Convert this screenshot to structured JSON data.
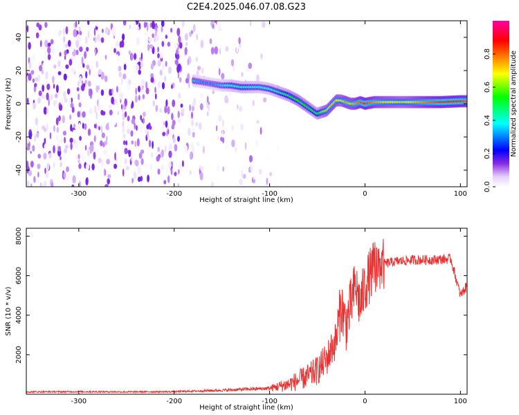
{
  "title": "C2E4.2025.046.07.08.G23",
  "colors": {
    "snr_line": "#e83232",
    "background": "#ffffff",
    "colormap": [
      "#ffffff",
      "#c080f0",
      "#8a2be2",
      "#0000ff",
      "#00ffff",
      "#00ff00",
      "#ffff00",
      "#ff8000",
      "#ff0000",
      "#ff00a0"
    ]
  },
  "chart_data": [
    {
      "type": "heatmap",
      "title": "C2E4.2025.046.07.08.G23",
      "xlabel": "Height of straight line (km)",
      "ylabel": "Frequency (Hz)",
      "xlim": [
        -355,
        107
      ],
      "ylim": [
        -50,
        50
      ],
      "x_ticks": [
        -300,
        -200,
        -100,
        0,
        100
      ],
      "y_ticks": [
        -40,
        -20,
        0,
        20,
        40
      ],
      "colorbar": {
        "label": "Normalized spectral amplitude",
        "range": [
          0.0,
          1.0
        ],
        "ticks": [
          0.0,
          0.2,
          0.4,
          0.6,
          0.8
        ]
      },
      "ridge": {
        "x": [
          -180,
          -170,
          -160,
          -150,
          -140,
          -130,
          -120,
          -110,
          -100,
          -90,
          -80,
          -70,
          -60,
          -55,
          -50,
          -45,
          -40,
          -35,
          -30,
          -25,
          -20,
          -15,
          -10,
          -5,
          0,
          10,
          20,
          40,
          60,
          80,
          100,
          107
        ],
        "frequency": [
          14,
          13,
          12,
          11,
          11,
          10,
          10,
          10,
          9,
          7,
          5,
          2,
          -2,
          -4,
          -6,
          -5,
          -4,
          -1,
          2,
          2,
          1,
          0,
          0,
          1,
          0,
          1,
          1,
          1,
          1,
          1,
          1.5,
          1.5
        ],
        "amplitude": [
          0.35,
          0.3,
          0.3,
          0.35,
          0.4,
          0.42,
          0.4,
          0.38,
          0.4,
          0.45,
          0.5,
          0.55,
          0.55,
          0.5,
          0.5,
          0.6,
          0.65,
          0.7,
          0.7,
          0.65,
          0.75,
          0.7,
          0.75,
          0.8,
          0.85,
          0.75,
          0.7,
          0.65,
          0.75,
          0.85,
          0.85,
          0.8
        ]
      }
    },
    {
      "type": "line",
      "xlabel": "Height of straight line (km)",
      "ylabel": "SNR (10 * v/v)",
      "xlim": [
        -355,
        107
      ],
      "ylim": [
        0,
        8400
      ],
      "x_ticks": [
        -300,
        -200,
        -100,
        0,
        100
      ],
      "y_ticks": [
        2000,
        4000,
        6000,
        8000
      ],
      "series": [
        {
          "x": [
            -355,
            -300,
            -250,
            -200,
            -150,
            -100,
            -80,
            -70,
            -60,
            -50,
            -40,
            -30,
            -25,
            -20,
            -15,
            -10,
            -5,
            0,
            10,
            20,
            30,
            50,
            70,
            90,
            100,
            107
          ],
          "y": [
            120,
            130,
            120,
            130,
            200,
            300,
            500,
            700,
            900,
            1200,
            1800,
            2800,
            4500,
            3500,
            4500,
            5500,
            4500,
            5500,
            6500,
            6600,
            6700,
            6800,
            6800,
            6850,
            5000,
            5500
          ]
        }
      ]
    }
  ]
}
